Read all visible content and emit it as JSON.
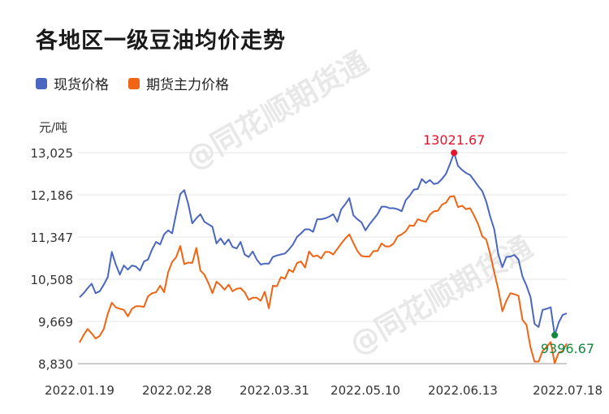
{
  "title": "各地区一级豆油均价走势",
  "unit_label": "元/吨",
  "watermark": "@同花顺期货通",
  "colors": {
    "spot": "#4a66c0",
    "futures": "#f06414",
    "max_marker": "#e8132a",
    "min_marker": "#14883c",
    "grid": "#e4e4e4",
    "axis_text": "#333333"
  },
  "chart_data": {
    "type": "line",
    "title": "各地区一级豆油均价走势",
    "ylabel": "元/吨",
    "ylim": [
      8830,
      13025
    ],
    "yticks": [
      "13,025",
      "12,186",
      "11,347",
      "10,508",
      "9,669",
      "8,830"
    ],
    "ytick_values": [
      13025,
      12186,
      11347,
      10508,
      9669,
      8830
    ],
    "xticks": [
      "2022.01.19",
      "2022.02.28",
      "2022.03.31",
      "2022.05.10",
      "2022.06.13",
      "2022.07.18"
    ],
    "legend_position": "top-left",
    "grid": true,
    "annotations": [
      {
        "label": "13021.67",
        "series": "现货价格",
        "type": "max"
      },
      {
        "label": "9396.67",
        "series": "现货价格",
        "type": "min"
      }
    ],
    "series": [
      {
        "name": "现货价格",
        "values": [
          10150,
          10230,
          10330,
          10420,
          10230,
          10270,
          10400,
          10550,
          11050,
          10800,
          10600,
          10780,
          10700,
          10780,
          10760,
          10680,
          10860,
          10900,
          11100,
          11250,
          11200,
          11400,
          11480,
          11420,
          11820,
          12200,
          12280,
          12000,
          11620,
          11720,
          11800,
          11650,
          11600,
          11550,
          11220,
          11320,
          11200,
          11300,
          11150,
          11120,
          11250,
          11000,
          10950,
          11060,
          10900,
          10800,
          10820,
          10820,
          10950,
          10980,
          11000,
          11020,
          11100,
          11200,
          11350,
          11420,
          11500,
          11500,
          11450,
          11700,
          11700,
          11720,
          11750,
          11800,
          11650,
          11900,
          12000,
          12120,
          11780,
          11700,
          11640,
          11480,
          11600,
          11700,
          11800,
          11950,
          11950,
          11920,
          11920,
          11900,
          11860,
          12080,
          12170,
          12290,
          12300,
          12500,
          12420,
          12480,
          12400,
          12420,
          12500,
          12600,
          12800,
          13021.67,
          12760,
          12680,
          12620,
          12580,
          12470,
          12360,
          12260,
          12050,
          11750,
          11500,
          11000,
          10750,
          10950,
          10960,
          10990,
          10900,
          10560,
          10380,
          10150,
          9620,
          9560,
          9900,
          9920,
          9950,
          9396.67,
          9650,
          9800,
          9830
        ]
      },
      {
        "name": "期货主力价格",
        "values": [
          9250,
          9400,
          9520,
          9430,
          9330,
          9380,
          9520,
          9820,
          10040,
          9950,
          9920,
          9900,
          9770,
          9920,
          9970,
          9970,
          9960,
          10170,
          10230,
          10250,
          10380,
          10250,
          10650,
          10850,
          10950,
          11170,
          10810,
          10840,
          10830,
          11130,
          10680,
          10600,
          10430,
          10230,
          10460,
          10390,
          10300,
          10400,
          10270,
          10320,
          10330,
          10250,
          10100,
          10140,
          10140,
          10080,
          10260,
          9930,
          10380,
          10370,
          10550,
          10520,
          10700,
          10650,
          10830,
          10860,
          10740,
          11060,
          10960,
          10980,
          10920,
          11050,
          11050,
          11000,
          11110,
          11220,
          11320,
          11400,
          11230,
          11070,
          10970,
          10960,
          10960,
          11070,
          11070,
          11220,
          11160,
          11160,
          11220,
          11360,
          11400,
          11460,
          11580,
          11570,
          11700,
          11670,
          11650,
          11790,
          11860,
          11870,
          11990,
          12030,
          12150,
          12160,
          11940,
          11970,
          11900,
          11920,
          11770,
          11600,
          11360,
          11300,
          11000,
          10650,
          10300,
          9870,
          10080,
          10230,
          10210,
          10180,
          9700,
          9600,
          9150,
          8870,
          8870,
          9080,
          9160,
          9260,
          8840,
          9050,
          9080,
          9230
        ]
      }
    ]
  }
}
